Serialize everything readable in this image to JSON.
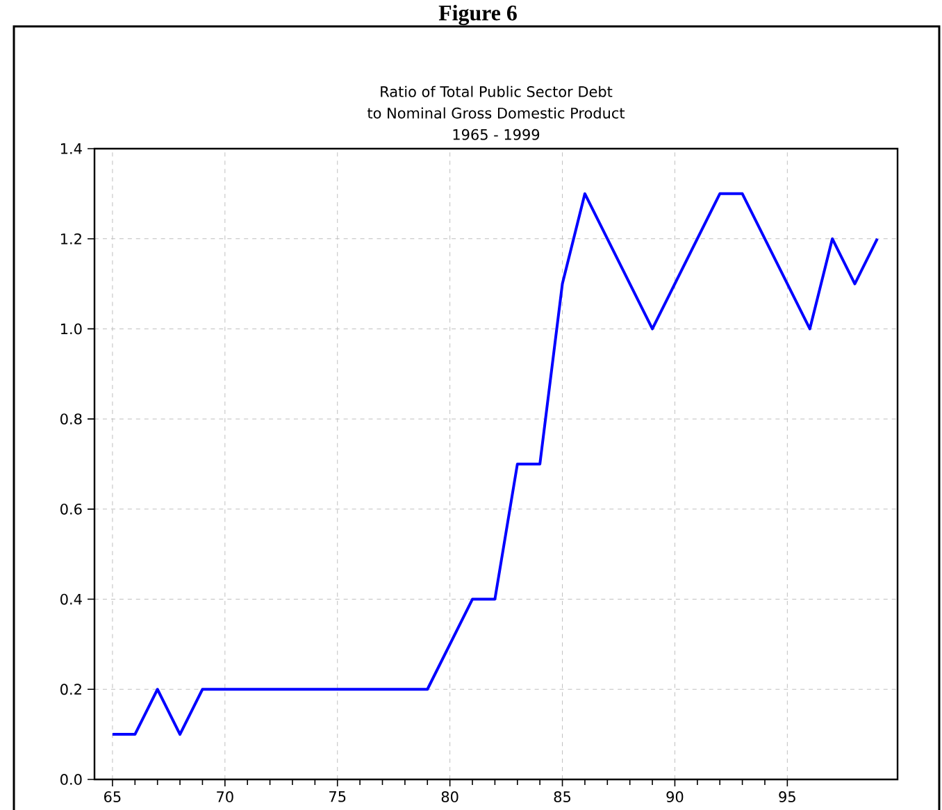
{
  "chart_data": {
    "type": "line",
    "title": "Ratio of Total Public Sector Debt\nto Nominal Gross Domestic Product\n1965 - 1999",
    "annotations": [
      "Figure 6"
    ],
    "x": [
      65,
      66,
      67,
      68,
      69,
      79,
      81,
      82,
      83,
      84,
      85,
      86,
      89,
      92,
      93,
      96,
      97,
      98,
      99
    ],
    "series": [
      {
        "color": "#0000ff",
        "values": [
          0.1,
          0.1,
          0.2,
          0.1,
          0.2,
          0.2,
          0.4,
          0.4,
          0.7,
          0.7,
          1.1,
          1.3,
          1.0,
          1.3,
          1.3,
          1.0,
          1.2,
          1.1,
          1.2
        ]
      }
    ],
    "xlim": [
      64.2,
      99.9
    ],
    "xticks": [
      65,
      70,
      75,
      80,
      85,
      90,
      95
    ],
    "ylim": [
      0,
      1.4
    ],
    "yticks": [
      {
        "value": 0,
        "label": "0.0"
      },
      {
        "value": 0.2,
        "label": "0.2"
      },
      {
        "value": 0.4,
        "label": "0.4"
      },
      {
        "value": 0.6,
        "label": "0.6"
      },
      {
        "value": 0.8,
        "label": "0.8"
      },
      {
        "value": 1.0,
        "label": "1.0"
      },
      {
        "value": 1.2,
        "label": "1.2"
      },
      {
        "value": 1.4,
        "label": "1.4"
      }
    ],
    "grid": true,
    "marker": "none",
    "line_style": "solid"
  }
}
